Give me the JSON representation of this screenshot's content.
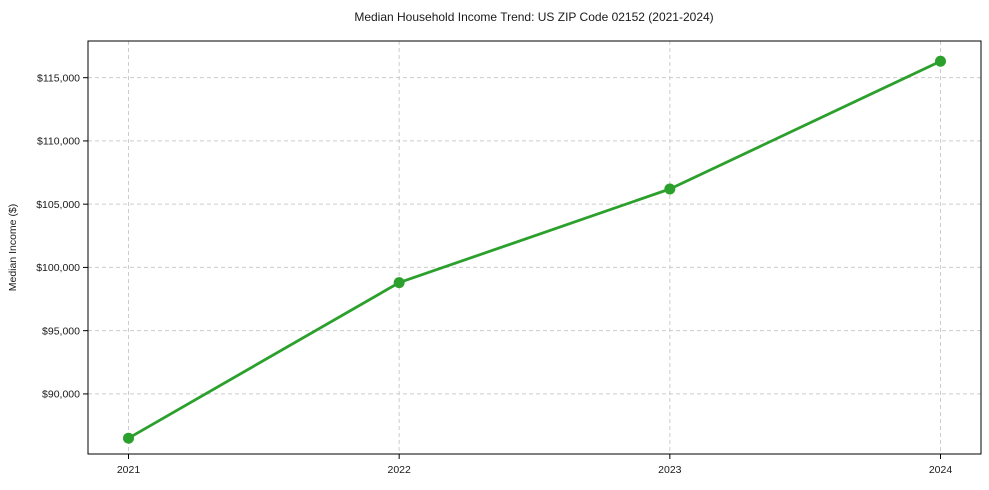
{
  "chart_data": {
    "type": "line",
    "title": "Median Household Income Trend: US ZIP Code 02152 (2021-2024)",
    "xlabel": "",
    "ylabel": "Median Income ($)",
    "x": [
      "2021",
      "2022",
      "2023",
      "2024"
    ],
    "values": [
      86500,
      98800,
      106200,
      116300
    ],
    "ylim": [
      85250,
      117900
    ],
    "yticks": [
      90000,
      95000,
      100000,
      105000,
      110000,
      115000
    ],
    "ytick_labels": [
      "$90,000",
      "$95,000",
      "$100,000",
      "$105,000",
      "$110,000",
      "$115,000"
    ],
    "xtick_labels": [
      "2021",
      "2022",
      "2023",
      "2024"
    ],
    "grid": true,
    "grid_style": "dashed",
    "legend_position": "none",
    "marker": "circle",
    "colors": {
      "line": "#2ca02c",
      "marker": "#2ca02c",
      "grid": "#cccccc",
      "axis": "#000000",
      "text": "#1a1a1a",
      "background": "#ffffff"
    }
  }
}
